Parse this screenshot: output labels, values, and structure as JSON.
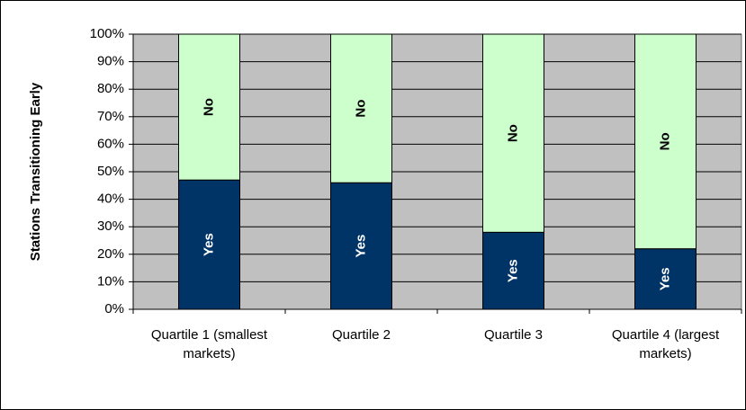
{
  "chart_data": {
    "type": "bar",
    "stacked": true,
    "y_label": "Stations Transitioning Early",
    "categories": [
      "Quartile 1 (smallest markets)",
      "Quartile 2",
      "Quartile 3",
      "Quartile 4 (largest markets)"
    ],
    "series": [
      {
        "name": "Yes",
        "color": "#003366",
        "values": [
          47,
          46,
          28,
          22
        ]
      },
      {
        "name": "No",
        "color": "#ccffcc",
        "values": [
          53,
          54,
          72,
          78
        ]
      }
    ],
    "ylim": [
      0,
      100
    ],
    "yticks": [
      {
        "value": 0,
        "label": "0%"
      },
      {
        "value": 10,
        "label": "10%"
      },
      {
        "value": 20,
        "label": "20%"
      },
      {
        "value": 30,
        "label": "30%"
      },
      {
        "value": 40,
        "label": "40%"
      },
      {
        "value": 50,
        "label": "50%"
      },
      {
        "value": 60,
        "label": "60%"
      },
      {
        "value": 70,
        "label": "70%"
      },
      {
        "value": 80,
        "label": "80%"
      },
      {
        "value": 90,
        "label": "90%"
      },
      {
        "value": 100,
        "label": "100%"
      }
    ],
    "grid": true,
    "plot_background": "#c0c0c0"
  }
}
